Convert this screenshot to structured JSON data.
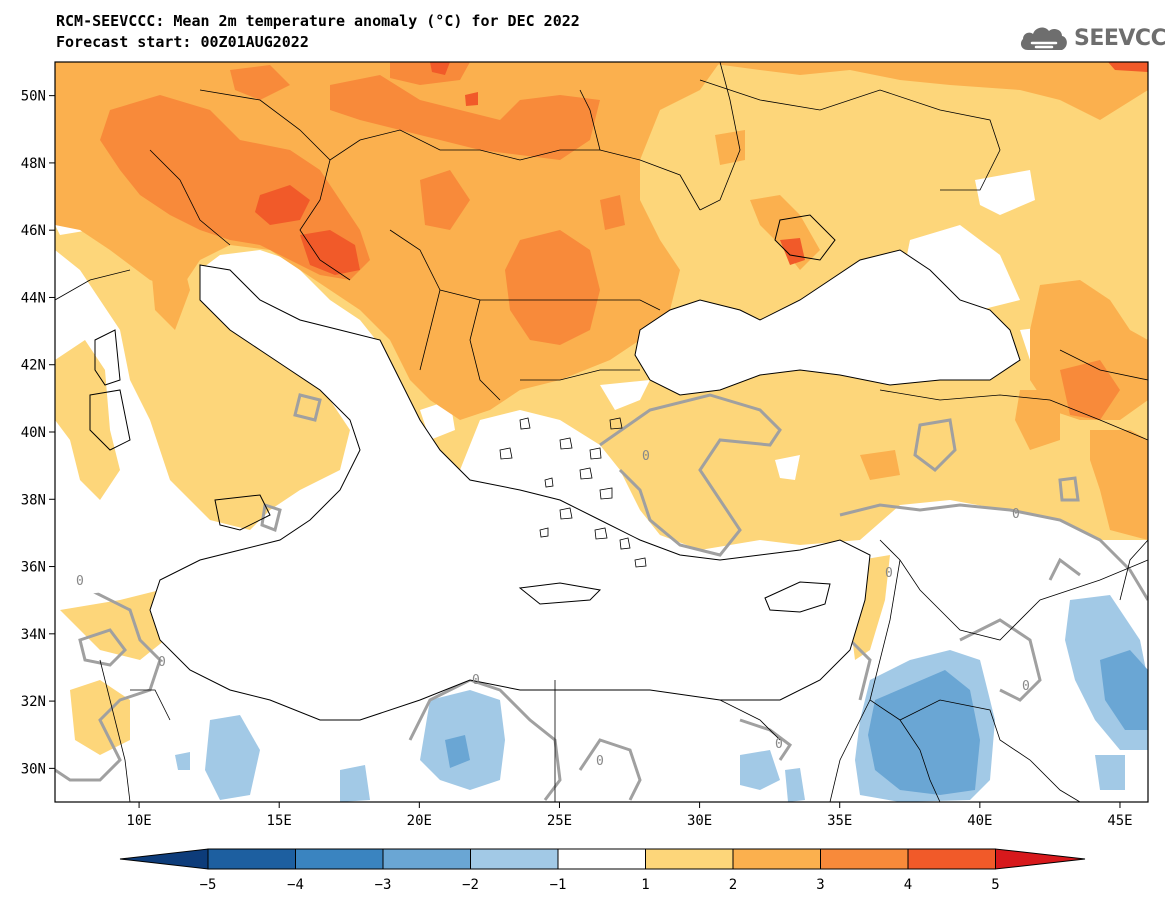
{
  "title": {
    "line1": "RCM-SEEVCCC: Mean 2m temperature anomaly (°C) for DEC 2022",
    "line2": "Forecast start: 00Z01AUG2022"
  },
  "logo": {
    "text": "SEEVCCC",
    "icon": "cloud-icon"
  },
  "map": {
    "lon_range": [
      7,
      46
    ],
    "lat_range": [
      29,
      51
    ],
    "lat_ticks": [
      {
        "value": 50,
        "label": "50N"
      },
      {
        "value": 48,
        "label": "48N"
      },
      {
        "value": 46,
        "label": "46N"
      },
      {
        "value": 44,
        "label": "44N"
      },
      {
        "value": 42,
        "label": "42N"
      },
      {
        "value": 40,
        "label": "40N"
      },
      {
        "value": 38,
        "label": "38N"
      },
      {
        "value": 36,
        "label": "36N"
      },
      {
        "value": 34,
        "label": "34N"
      },
      {
        "value": 32,
        "label": "32N"
      },
      {
        "value": 30,
        "label": "30N"
      }
    ],
    "lon_ticks": [
      {
        "value": 10,
        "label": "10E"
      },
      {
        "value": 15,
        "label": "15E"
      },
      {
        "value": 20,
        "label": "20E"
      },
      {
        "value": 25,
        "label": "25E"
      },
      {
        "value": 30,
        "label": "30E"
      },
      {
        "value": 35,
        "label": "35E"
      },
      {
        "value": 40,
        "label": "40E"
      },
      {
        "value": 45,
        "label": "45E"
      }
    ],
    "contour_label": "0"
  },
  "colorbar": {
    "labels": [
      "−5",
      "−4",
      "−3",
      "−2",
      "−1",
      "1",
      "2",
      "3",
      "4",
      "5"
    ],
    "under_color": "#0d3c7a",
    "over_color": "#d7191c",
    "colors": [
      "#1d5fa0",
      "#3a84c0",
      "#6aa6d4",
      "#a2c9e6",
      "#ffffff",
      "#fdd67a",
      "#fbb04e",
      "#f88a3a",
      "#f15a29"
    ]
  }
}
